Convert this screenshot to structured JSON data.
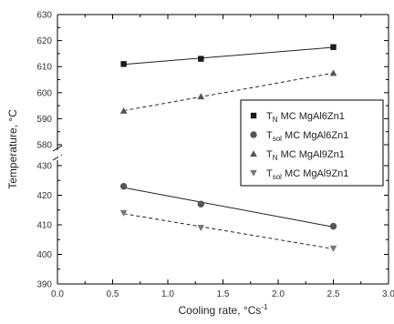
{
  "chart_data": {
    "type": "scatter",
    "xlabel": "Cooling rate, °Cs",
    "xlabel_superscript": "-1",
    "ylabel": "Temperature, °C",
    "xlim": [
      0.0,
      3.0
    ],
    "x_ticks": [
      "0.0",
      "0.5",
      "1.0",
      "1.5",
      "2.0",
      "2.5",
      "3.0"
    ],
    "y_axis_break": true,
    "ylim_upper": [
      580,
      630
    ],
    "ylim_lower": [
      390,
      430
    ],
    "y_ticks_upper": [
      "630",
      "620",
      "610",
      "600",
      "590",
      "580"
    ],
    "y_ticks_lower": [
      "430",
      "420",
      "410",
      "400",
      "390"
    ],
    "grid": false,
    "legend_position": "center-right",
    "series": [
      {
        "name_main": "T",
        "name_sub": "N",
        "name_rest": " MC MgAl6Zn1",
        "marker": "square",
        "line": "solid",
        "color": "#1a1a1a",
        "x": [
          0.6,
          1.3,
          2.5
        ],
        "y": [
          611,
          613,
          617.5
        ]
      },
      {
        "name_main": "T",
        "name_sub": "sol",
        "name_rest": " MC MgAl6Zn1",
        "marker": "circle",
        "line": "solid",
        "color": "#555555",
        "x": [
          0.6,
          1.3,
          2.5
        ],
        "y": [
          423,
          417,
          409.5
        ]
      },
      {
        "name_main": "T",
        "name_sub": "N",
        "name_rest": " MC MgAl9Zn1",
        "marker": "triangle-up",
        "line": "dashed",
        "color": "#555555",
        "x": [
          0.6,
          1.3,
          2.5
        ],
        "y": [
          593,
          598.5,
          607.5
        ]
      },
      {
        "name_main": "T",
        "name_sub": "sol",
        "name_rest": " MC MgAl9Zn1",
        "marker": "triangle-down",
        "line": "dashed",
        "color": "#777777",
        "x": [
          0.6,
          1.3,
          2.5
        ],
        "y": [
          414,
          409,
          402
        ]
      }
    ]
  }
}
